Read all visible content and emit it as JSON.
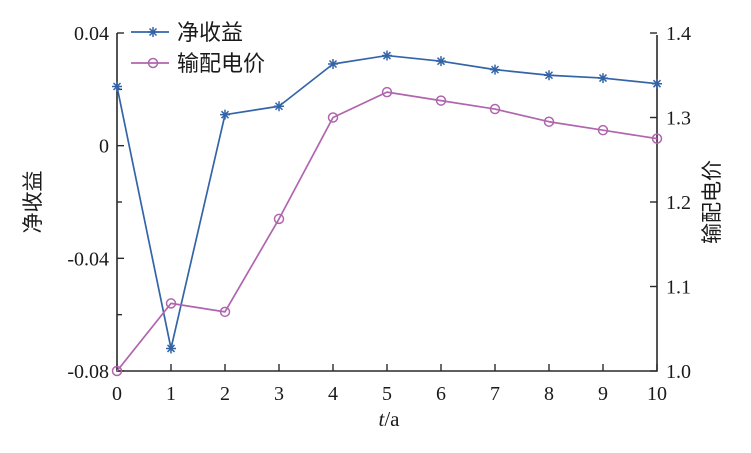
{
  "figure": {
    "background": "#ffffff",
    "text_color": "#1a1a1a",
    "axis_color": "#2a2a2a"
  },
  "chart_data": {
    "type": "line",
    "title": "",
    "xlabel": {
      "italic": "t",
      "rest": "/a"
    },
    "x": [
      0,
      1,
      2,
      3,
      4,
      5,
      6,
      7,
      8,
      9,
      10
    ],
    "x_tick_labels": [
      "0",
      "1",
      "2",
      "3",
      "4",
      "5",
      "6",
      "7",
      "8",
      "9",
      "10"
    ],
    "left_axis": {
      "label": "净收益",
      "min": -0.08,
      "max": 0.04,
      "tick_values": [
        0.04,
        0,
        -0.04,
        -0.08
      ],
      "tick_labels": [
        "0.04",
        "0",
        "-0.04",
        "-0.08"
      ],
      "minor_tick_values": [
        0.02,
        -0.02,
        -0.06
      ]
    },
    "right_axis": {
      "label": "输配电价",
      "min": 1.0,
      "max": 1.4,
      "tick_values": [
        1.4,
        1.3,
        1.2,
        1.1,
        1.0
      ],
      "tick_labels": [
        "1.4",
        "1.3",
        "1.2",
        "1.1",
        "1.0"
      ]
    },
    "series": [
      {
        "id": "net-income",
        "name": "净收益",
        "axis": "left",
        "color": "#3464a8",
        "marker": "asterisk",
        "values": [
          0.021,
          -0.072,
          0.011,
          0.014,
          0.029,
          0.032,
          0.03,
          0.027,
          0.025,
          0.024,
          0.022
        ]
      },
      {
        "id": "transmission-price",
        "name": "输配电价",
        "axis": "right",
        "color": "#b065ae",
        "marker": "circle",
        "values": [
          1.0,
          1.08,
          1.07,
          1.18,
          1.3,
          1.33,
          1.32,
          1.31,
          1.295,
          1.285,
          1.275
        ]
      }
    ],
    "legend": {
      "position": "top-left",
      "entries": [
        "净收益",
        "输配电价"
      ]
    },
    "grid": false
  }
}
